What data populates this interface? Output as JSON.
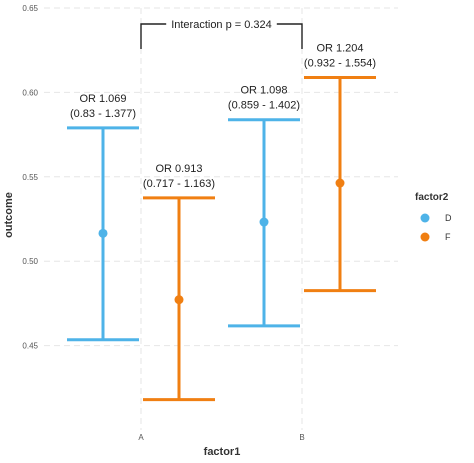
{
  "chart_data": {
    "type": "errorbar",
    "xlabel": "factor1",
    "ylabel": "outcome",
    "categories": [
      "A",
      "B"
    ],
    "ylim": [
      0.4,
      0.65
    ],
    "yticks": [
      "0.45",
      "0.50",
      "0.55",
      "0.60",
      "0.65"
    ],
    "grid": true,
    "legend": {
      "title": "factor2",
      "placement": "right",
      "entries": [
        "D",
        "F"
      ]
    },
    "series": [
      {
        "name": "D",
        "color": "#4eb3e8",
        "points": [
          {
            "x": "A",
            "y": 0.5165,
            "lower": 0.4535,
            "upper": 0.579,
            "label_or": "OR 1.069",
            "label_ci": "(0.83 - 1.377)"
          },
          {
            "x": "B",
            "y": 0.5232,
            "lower": 0.4617,
            "upper": 0.5838,
            "label_or": "OR 1.098",
            "label_ci": "(0.859 - 1.402)"
          }
        ]
      },
      {
        "name": "F",
        "color": "#f07f12",
        "points": [
          {
            "x": "A",
            "y": 0.4772,
            "lower": 0.418,
            "upper": 0.5375,
            "label_or": "OR 0.913",
            "label_ci": "(0.717 - 1.163)"
          },
          {
            "x": "B",
            "y": 0.5463,
            "lower": 0.4826,
            "upper": 0.6088,
            "label_or": "OR 1.204",
            "label_ci": "(0.932 - 1.554)"
          }
        ]
      }
    ],
    "interaction_label": "Interaction p = 0.324"
  }
}
